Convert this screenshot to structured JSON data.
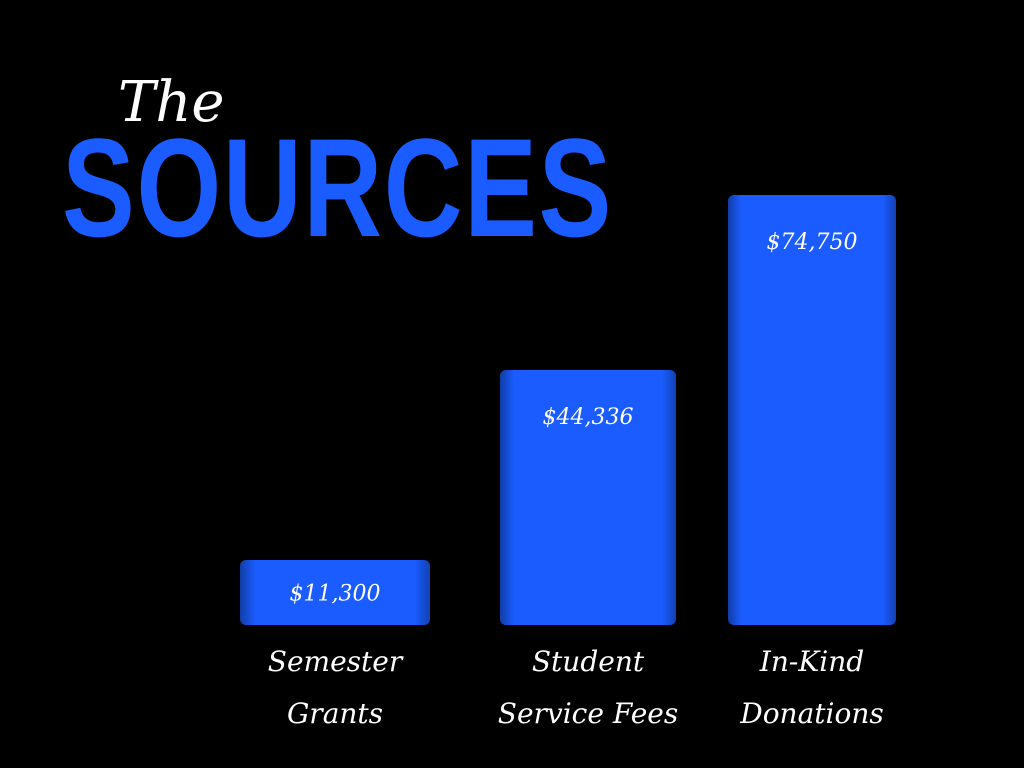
{
  "chart_data": {
    "type": "bar",
    "title": "SOURCES",
    "subtitle": "The",
    "categories": [
      "Semester Grants",
      "Student Service Fees",
      "In-Kind Donations"
    ],
    "values": [
      11300,
      44336,
      74750
    ],
    "value_labels": [
      "$11,300",
      "$44,336",
      "$74,750"
    ],
    "color": "#1a5cff"
  }
}
